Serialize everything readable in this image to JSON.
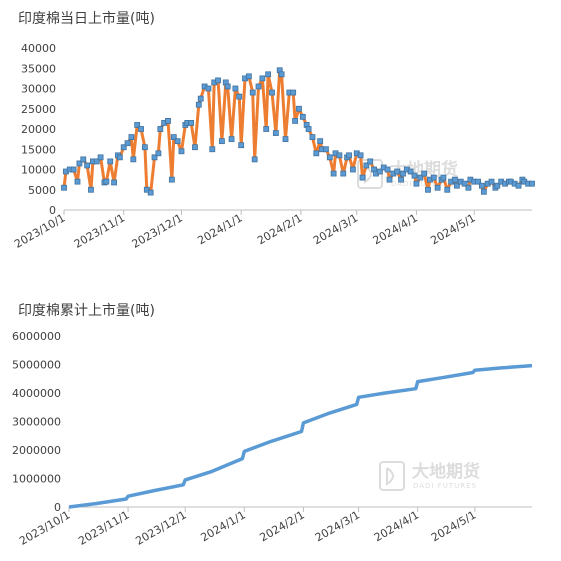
{
  "chart_data": [
    {
      "type": "line",
      "title": "印度棉当日上市量(吨)",
      "ylim": [
        0,
        40000
      ],
      "yticks": [
        0,
        5000,
        10000,
        15000,
        20000,
        25000,
        30000,
        35000,
        40000
      ],
      "xlim": [
        "2023-10-01",
        "2024-05-31"
      ],
      "xticks": [
        "2023/10/1",
        "2023/11/1",
        "2023/12/1",
        "2024/1/1",
        "2024/2/1",
        "2024/3/1",
        "2024/4/1",
        "2024/5/1"
      ],
      "line_color": "#ed7d31",
      "marker_color": "#5b9bd5",
      "series": [
        {
          "x": [
            "2023-10-01",
            "2023-10-02",
            "2023-10-04",
            "2023-10-06",
            "2023-10-08",
            "2023-10-09",
            "2023-10-11",
            "2023-10-13",
            "2023-10-15",
            "2023-10-16",
            "2023-10-18",
            "2023-10-20",
            "2023-10-22",
            "2023-10-23",
            "2023-10-25",
            "2023-10-27",
            "2023-10-29",
            "2023-10-30",
            "2023-11-01",
            "2023-11-03",
            "2023-11-05",
            "2023-11-06",
            "2023-11-08",
            "2023-11-10",
            "2023-11-12",
            "2023-11-13",
            "2023-11-15",
            "2023-11-17",
            "2023-11-19",
            "2023-11-20",
            "2023-11-22",
            "2023-11-24",
            "2023-11-26",
            "2023-11-27",
            "2023-11-29",
            "2023-12-01",
            "2023-12-03",
            "2023-12-04",
            "2023-12-06",
            "2023-12-08",
            "2023-12-10",
            "2023-12-11",
            "2023-12-13",
            "2023-12-15",
            "2023-12-17",
            "2023-12-18",
            "2023-12-20",
            "2023-12-22",
            "2023-12-24",
            "2023-12-25",
            "2023-12-27",
            "2023-12-29",
            "2023-12-31",
            "2024-01-01",
            "2024-01-03",
            "2024-01-05",
            "2024-01-07",
            "2024-01-08",
            "2024-01-10",
            "2024-01-12",
            "2024-01-14",
            "2024-01-15",
            "2024-01-17",
            "2024-01-19",
            "2024-01-21",
            "2024-01-22",
            "2024-01-24",
            "2024-01-26",
            "2024-01-28",
            "2024-01-29",
            "2024-01-31",
            "2024-02-02",
            "2024-02-04",
            "2024-02-05",
            "2024-02-07",
            "2024-02-09",
            "2024-02-11",
            "2024-02-12",
            "2024-02-14",
            "2024-02-16",
            "2024-02-18",
            "2024-02-19",
            "2024-02-21",
            "2024-02-23",
            "2024-02-25",
            "2024-02-26",
            "2024-02-28",
            "2024-03-01",
            "2024-03-03",
            "2024-03-04",
            "2024-03-06",
            "2024-03-08",
            "2024-03-10",
            "2024-03-11",
            "2024-03-13",
            "2024-03-15",
            "2024-03-17",
            "2024-03-18",
            "2024-03-20",
            "2024-03-22",
            "2024-03-24",
            "2024-03-25",
            "2024-03-27",
            "2024-03-29",
            "2024-03-31",
            "2024-04-01",
            "2024-04-03",
            "2024-04-05",
            "2024-04-07",
            "2024-04-08",
            "2024-04-10",
            "2024-04-12",
            "2024-04-14",
            "2024-04-15",
            "2024-04-17",
            "2024-04-19",
            "2024-04-21",
            "2024-04-22",
            "2024-04-24",
            "2024-04-26",
            "2024-04-28",
            "2024-04-29",
            "2024-05-01",
            "2024-05-03",
            "2024-05-05",
            "2024-05-06",
            "2024-05-08",
            "2024-05-10",
            "2024-05-12",
            "2024-05-13",
            "2024-05-15",
            "2024-05-17",
            "2024-05-19",
            "2024-05-20",
            "2024-05-22",
            "2024-05-24",
            "2024-05-26",
            "2024-05-27",
            "2024-05-29",
            "2024-05-31"
          ],
          "values": [
            5500,
            9500,
            10000,
            10000,
            7000,
            11500,
            12500,
            11000,
            5000,
            12000,
            12000,
            13000,
            6800,
            7000,
            12000,
            6800,
            13500,
            13000,
            15500,
            16500,
            18000,
            12500,
            21000,
            20000,
            15500,
            5000,
            4300,
            13000,
            14000,
            20000,
            21500,
            22000,
            7500,
            18000,
            17000,
            14500,
            21000,
            21500,
            21500,
            15500,
            26000,
            27500,
            30500,
            30000,
            15000,
            31500,
            32000,
            17000,
            31500,
            30500,
            17500,
            30000,
            28000,
            16000,
            32500,
            33000,
            29000,
            12500,
            30500,
            32500,
            20000,
            33500,
            29000,
            19000,
            34500,
            33500,
            17500,
            29000,
            29000,
            22000,
            25000,
            23000,
            21000,
            20000,
            18000,
            14000,
            17000,
            15000,
            15000,
            13000,
            9000,
            14000,
            13500,
            9000,
            13000,
            13500,
            10000,
            14000,
            13500,
            8000,
            11000,
            12000,
            10000,
            9000,
            9500,
            10500,
            10000,
            7500,
            9000,
            9500,
            7500,
            9000,
            10000,
            9500,
            8500,
            6500,
            8000,
            9000,
            5000,
            7500,
            8000,
            5500,
            7500,
            8000,
            5000,
            7000,
            7500,
            6000,
            7000,
            6500,
            5500,
            7500,
            7000,
            7000,
            6000,
            4500,
            6500,
            7000,
            5500,
            6000,
            7000,
            6500,
            7000,
            7000,
            6500,
            6000,
            7500,
            7000,
            6500,
            6500
          ]
        }
      ]
    },
    {
      "type": "line",
      "title": "印度棉累计上市量(吨)",
      "ylim": [
        0,
        6000000
      ],
      "yticks": [
        0,
        1000000,
        2000000,
        3000000,
        4000000,
        5000000,
        6000000
      ],
      "xlim": [
        "2023-10-01",
        "2024-05-31"
      ],
      "xticks": [
        "2023/10/1",
        "2023/11/1",
        "2023/12/1",
        "2024/1/1",
        "2024/2/1",
        "2024/3/1",
        "2024/4/1",
        "2024/5/1"
      ],
      "line_color": "#5b9bd5",
      "series": [
        {
          "x": [
            "2023-10-01",
            "2023-10-15",
            "2023-10-31",
            "2023-11-01",
            "2023-11-15",
            "2023-11-30",
            "2023-12-01",
            "2023-12-15",
            "2023-12-31",
            "2024-01-01",
            "2024-01-15",
            "2024-01-31",
            "2024-02-01",
            "2024-02-15",
            "2024-02-29",
            "2024-03-01",
            "2024-03-15",
            "2024-03-31",
            "2024-04-01",
            "2024-04-15",
            "2024-04-30",
            "2024-05-01",
            "2024-05-15",
            "2024-05-31"
          ],
          "values": [
            0,
            120000,
            280000,
            380000,
            580000,
            780000,
            950000,
            1250000,
            1700000,
            1950000,
            2300000,
            2650000,
            2950000,
            3300000,
            3600000,
            3850000,
            4000000,
            4150000,
            4400000,
            4550000,
            4720000,
            4800000,
            4880000,
            4960000
          ]
        }
      ]
    }
  ],
  "watermark": {
    "name": "大地期货",
    "sub": "DADI FUTURES",
    "color": "#d9d9d9"
  }
}
